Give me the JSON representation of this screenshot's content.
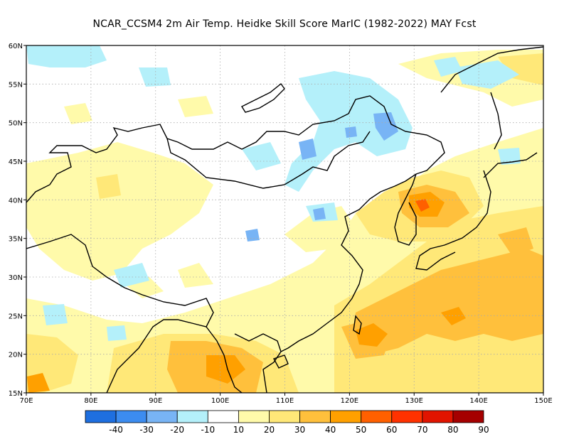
{
  "title": "NCAR_CCSM4  2m Air Temp. Heidke Skill Score MarIC (1982-2022) MAY Fcst",
  "map": {
    "lon_range": [
      70,
      150
    ],
    "lat_range": [
      15,
      60
    ],
    "lon_ticks": [
      "70E",
      "80E",
      "90E",
      "100E",
      "110E",
      "120E",
      "130E",
      "140E",
      "150E"
    ],
    "lat_ticks": [
      "15N",
      "20N",
      "25N",
      "30N",
      "35N",
      "40N",
      "45N",
      "50N",
      "55N",
      "60N"
    ],
    "grid_lines": true,
    "grid_style": "dotted"
  },
  "colorbar": {
    "labels": [
      "-40",
      "-30",
      "-20",
      "-10",
      "10",
      "20",
      "30",
      "40",
      "50",
      "60",
      "70",
      "80",
      "90"
    ],
    "colors": [
      "#1e6fe0",
      "#3c8cf0",
      "#78b4f5",
      "#b4f0fa",
      "#ffffff",
      "#fffaaa",
      "#ffe878",
      "#ffc03c",
      "#ffa000",
      "#ff6000",
      "#ff3200",
      "#e11400",
      "#a50000"
    ]
  },
  "colors": {
    "coast": "#000000",
    "grid": "#aaaaaa"
  }
}
